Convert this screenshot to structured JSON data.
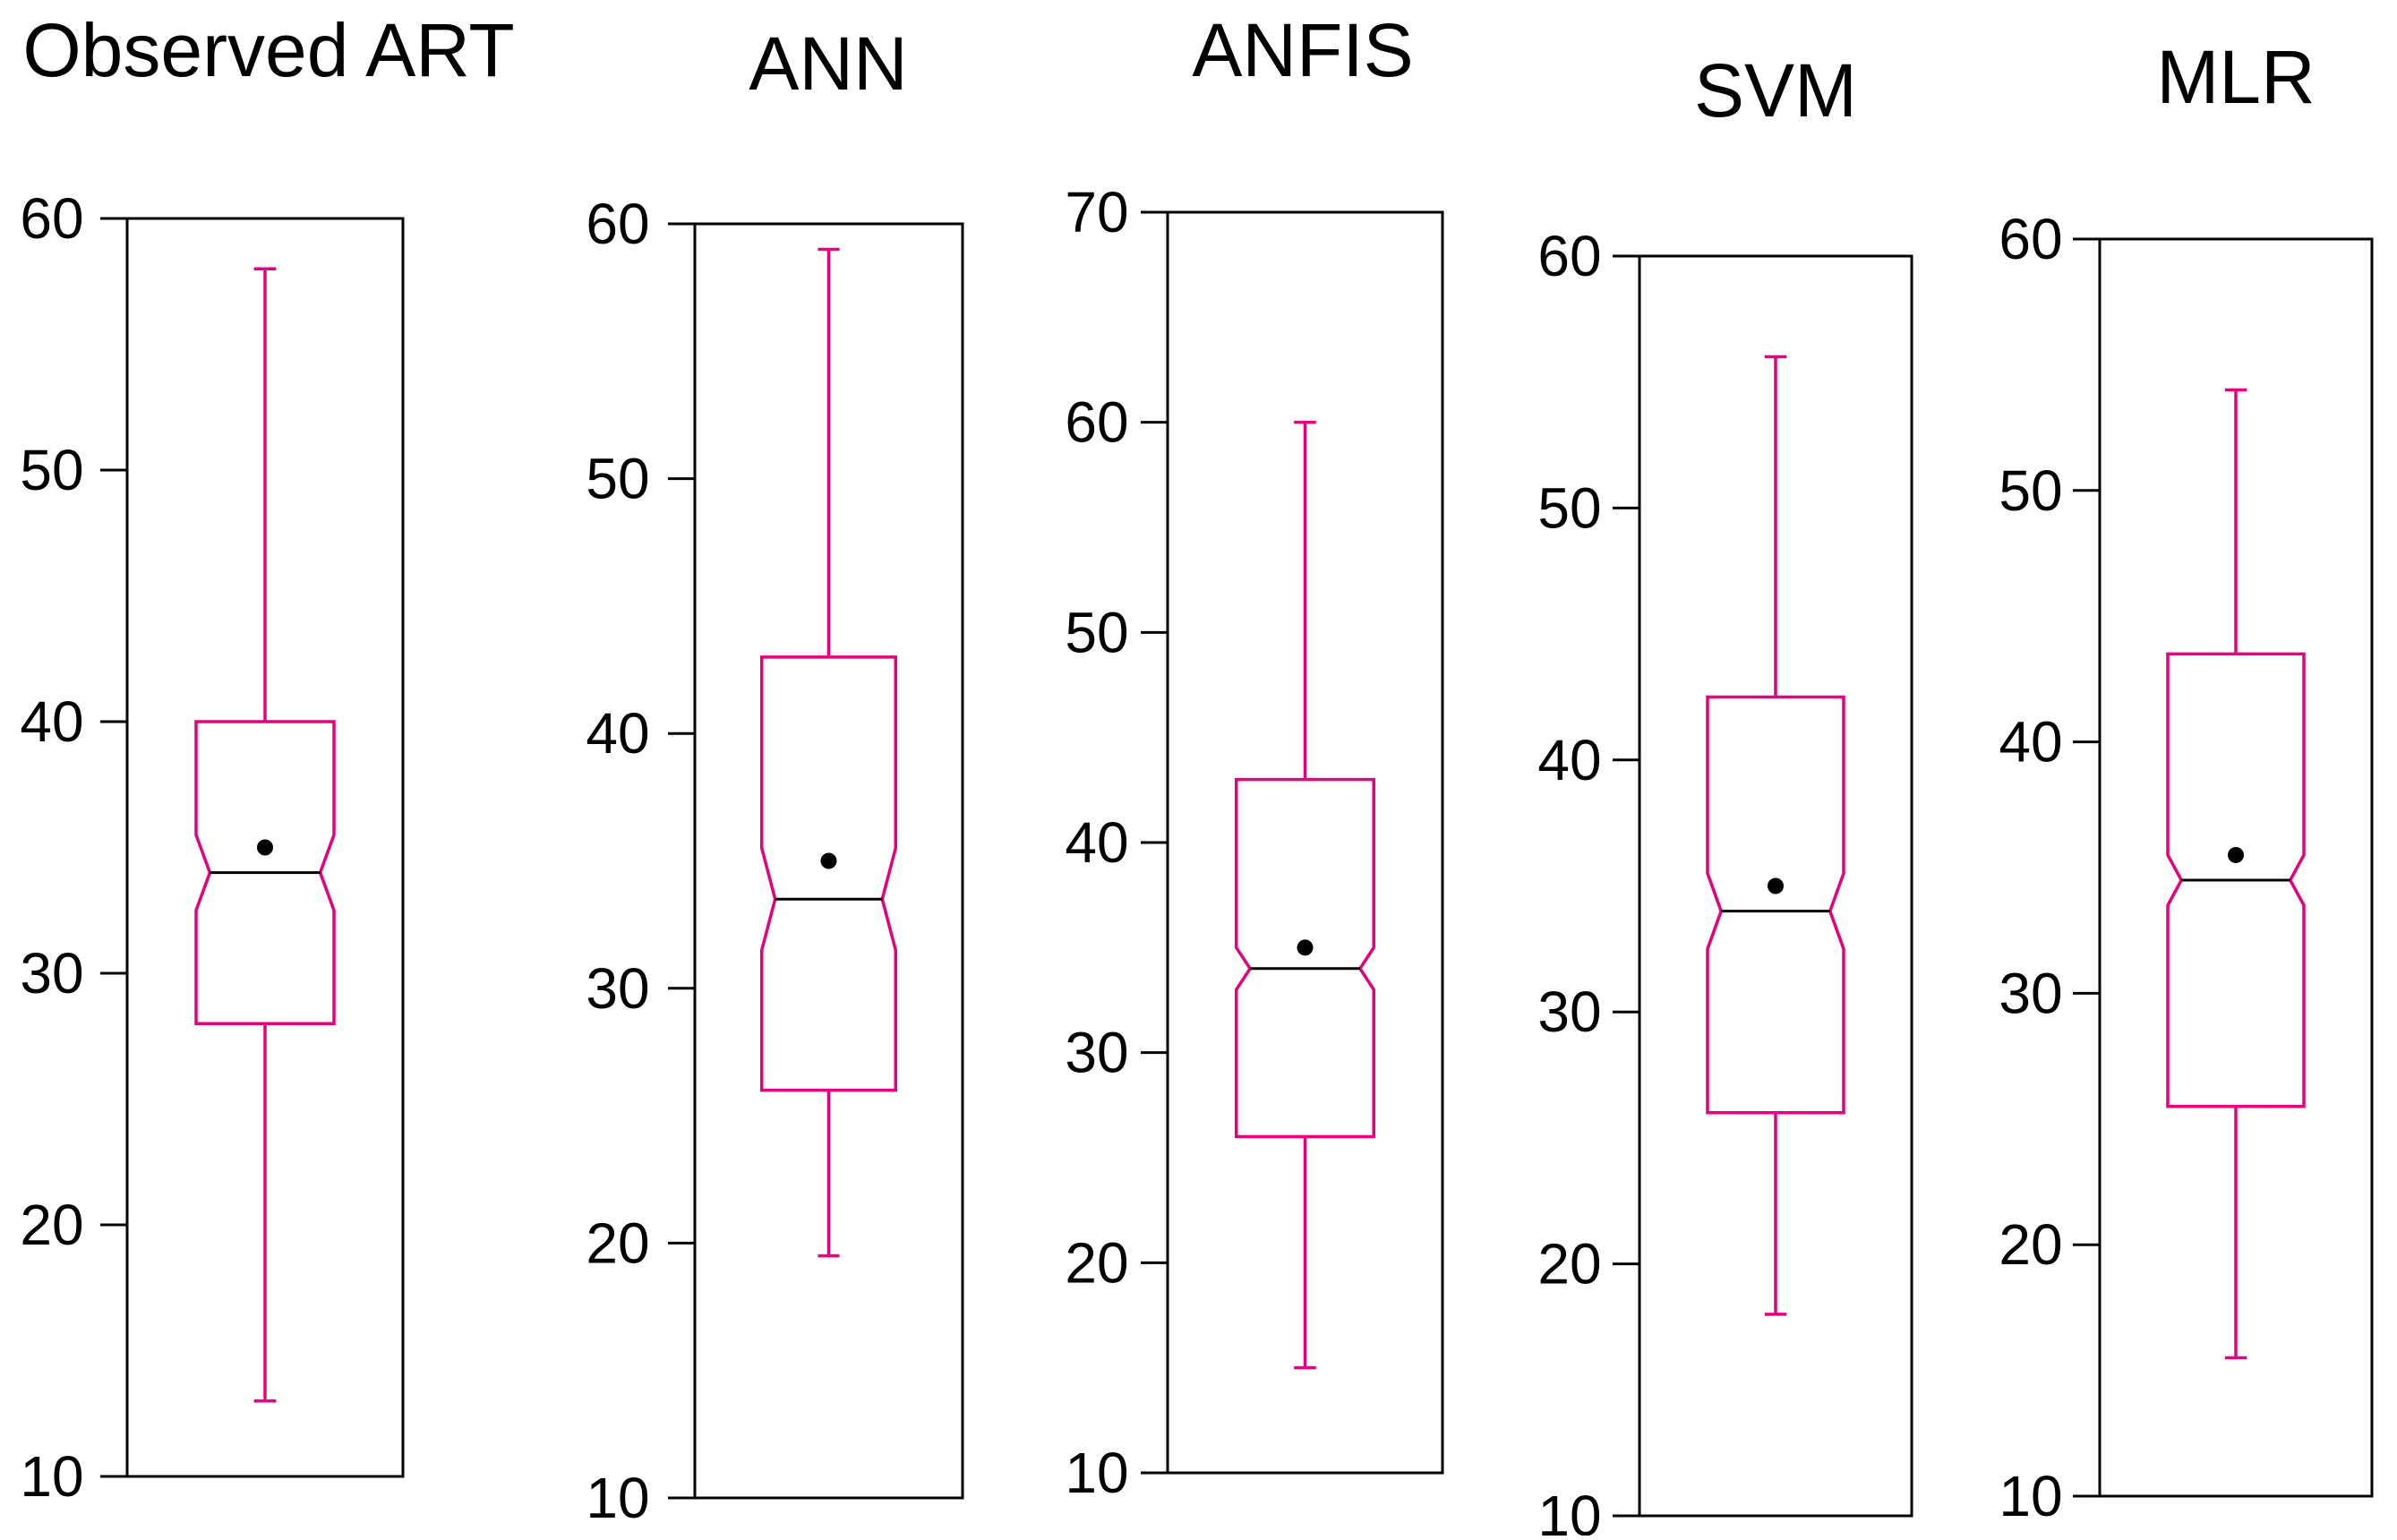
{
  "colors": {
    "box": "#e6007e",
    "frame": "#000000",
    "mean": "#000000",
    "background": "#ffffff"
  },
  "chart_data": [
    {
      "type": "boxplot",
      "title": "Observed ART",
      "ylim": [
        10,
        60
      ],
      "ticks": [
        10,
        20,
        30,
        40,
        50,
        60
      ],
      "whisker_low": 13,
      "q1": 28,
      "median": 34,
      "q3": 40,
      "whisker_high": 58,
      "mean": 35,
      "notch_low": 32.5,
      "notch_high": 35.5
    },
    {
      "type": "boxplot",
      "title": "ANN",
      "ylim": [
        10,
        60
      ],
      "ticks": [
        10,
        20,
        30,
        40,
        50,
        60
      ],
      "whisker_low": 19.5,
      "q1": 26,
      "median": 33.5,
      "q3": 43,
      "whisker_high": 59,
      "mean": 35,
      "notch_low": 31.5,
      "notch_high": 35.5
    },
    {
      "type": "boxplot",
      "title": "ANFIS",
      "ylim": [
        10,
        70
      ],
      "ticks": [
        10,
        20,
        30,
        40,
        50,
        60,
        70
      ],
      "whisker_low": 15,
      "q1": 26,
      "median": 34,
      "q3": 43,
      "whisker_high": 60,
      "mean": 35,
      "notch_low": 33,
      "notch_high": 35
    },
    {
      "type": "boxplot",
      "title": "SVM",
      "ylim": [
        10,
        60
      ],
      "ticks": [
        10,
        20,
        30,
        40,
        50,
        60
      ],
      "whisker_low": 18,
      "q1": 26,
      "median": 34,
      "q3": 42.5,
      "whisker_high": 56,
      "mean": 35,
      "notch_low": 32.5,
      "notch_high": 35.5
    },
    {
      "type": "boxplot",
      "title": "MLR",
      "ylim": [
        10,
        60
      ],
      "ticks": [
        10,
        20,
        30,
        40,
        50,
        60
      ],
      "whisker_low": 15.5,
      "q1": 25.5,
      "median": 34.5,
      "q3": 43.5,
      "whisker_high": 54,
      "mean": 35.5,
      "notch_low": 33.5,
      "notch_high": 35.5
    }
  ]
}
